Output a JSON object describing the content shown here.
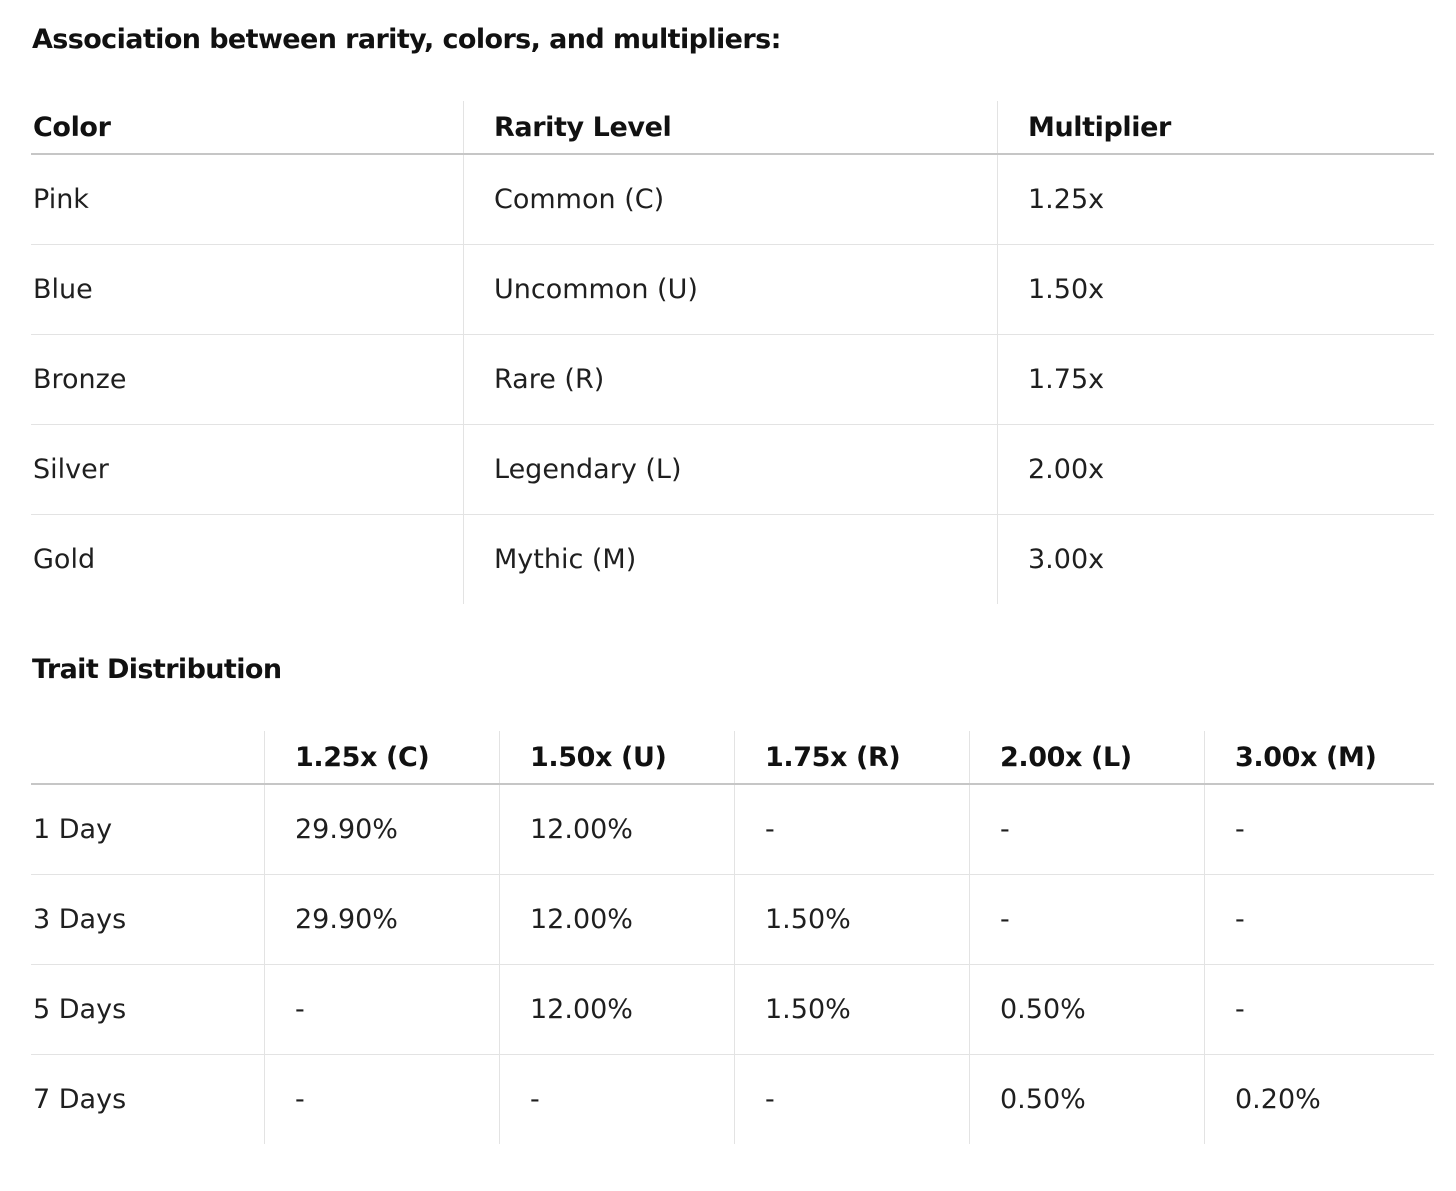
{
  "association": {
    "title": "Association between rarity, colors, and multipliers:",
    "headers": [
      "Color",
      "Rarity Level",
      "Multiplier"
    ],
    "rows": [
      [
        "Pink",
        "Common (C)",
        "1.25x"
      ],
      [
        "Blue",
        "Uncommon (U)",
        "1.50x"
      ],
      [
        "Bronze",
        "Rare (R)",
        "1.75x"
      ],
      [
        "Silver",
        "Legendary (L)",
        "2.00x"
      ],
      [
        "Gold",
        "Mythic (M)",
        "3.00x"
      ]
    ]
  },
  "trait": {
    "title": "Trait Distribution",
    "headers": [
      "",
      "1.25x (C)",
      "1.50x (U)",
      "1.75x (R)",
      "2.00x (L)",
      "3.00x (M)"
    ],
    "rows": [
      [
        "1 Day",
        "29.90%",
        "12.00%",
        "-",
        "-",
        "-"
      ],
      [
        "3 Days",
        "29.90%",
        "12.00%",
        "1.50%",
        "-",
        "-"
      ],
      [
        "5 Days",
        "-",
        "12.00%",
        "1.50%",
        "0.50%",
        "-"
      ],
      [
        "7 Days",
        "-",
        "-",
        "-",
        "0.50%",
        "0.20%"
      ]
    ]
  }
}
